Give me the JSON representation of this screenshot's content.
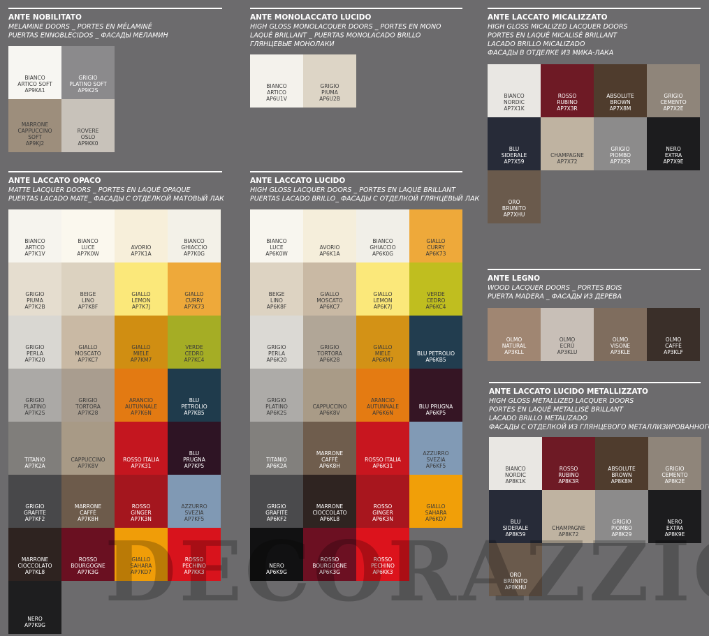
{
  "sections": [
    {
      "title": "ANTE NOBILITATO",
      "lines": [
        "MELAMINE DOORS _ PORTES EN MÉLAMINÉ",
        "PUERTAS ENNOBLECIDOS _ ФАСАДЫ МЕЛАМИН"
      ],
      "columns": 2,
      "swatches": [
        {
          "name": [
            "BIANCO",
            "ARTICO SOFT"
          ],
          "code": "AP9KA1",
          "color": "#f7f6f2"
        },
        {
          "name": [
            "GRIGIO",
            "PLATINO SOFT"
          ],
          "code": "AP9K2S",
          "color": "#8b8a8c"
        },
        {
          "name": [
            "MARRONE",
            "CAPPUCCINO",
            "SOFT"
          ],
          "code": "AP9KJ2",
          "color": "#9d8e7c"
        },
        {
          "name": [
            "ROVERE",
            "OSLO"
          ],
          "code": "AP9KK0",
          "color": "#c8c2ba"
        }
      ]
    },
    {
      "title": "ANTE MONOLACCATO LUCIDO",
      "lines": [
        "HIGH GLOSS MONOLACQUER DOORS _ PORTES EN MONO",
        "LAQUÉ BRILLANT _ PUERTAS MONOLACADO BRILLO",
        "ГЛЯНЦЕВЫЕ МОНОЛАКИ"
      ],
      "columns": 4,
      "swatches": [
        {
          "name": [
            "BIANCO",
            "ARTICO"
          ],
          "code": "AP6U1V",
          "color": "#f4f2ec"
        },
        {
          "name": [
            "GRIGIO",
            "PIUMA"
          ],
          "code": "AP6U2B",
          "color": "#ddd5c6"
        }
      ]
    },
    {
      "title": "ANTE LACCATO MICALIZZATO",
      "lines": [
        "HIGH GLOSS MICALIZED LACQUER DOORS",
        "PORTES EN LAQUÉ MICALISÉ BRILLANT",
        "LACADO BRILLO MICALIZADO",
        "ФАСАДЫ В ОТДЕЛКЕ ИЗ МИКА-ЛАКА"
      ],
      "columns": 4,
      "swatches": [
        {
          "name": [
            "BIANCO",
            "NORDIC"
          ],
          "code": "AP7X1K",
          "color": "#e9e7e3"
        },
        {
          "name": [
            "ROSSO",
            "RUBINO"
          ],
          "code": "AP7X3R",
          "color": "#6e1a25"
        },
        {
          "name": [
            "ABSOLUTE",
            "BROWN"
          ],
          "code": "AP7X8M",
          "color": "#4f3c2d"
        },
        {
          "name": [
            "GRIGIO",
            "CEMENTO"
          ],
          "code": "AP7X2E",
          "color": "#8f857a"
        },
        {
          "name": [
            "BLU",
            "SIDERALE"
          ],
          "code": "AP7X59",
          "color": "#272b38"
        },
        {
          "name": [
            "CHAMPAGNE"
          ],
          "code": "AP7X72",
          "color": "#bfb3a1"
        },
        {
          "name": [
            "GRIGIO",
            "PIOMBO"
          ],
          "code": "AP7X29",
          "color": "#8c8b8b"
        },
        {
          "name": [
            "NERO",
            "EXTRA"
          ],
          "code": "AP7X9E",
          "color": "#1c1c1e"
        },
        {
          "name": [
            "ORO",
            "BRUNITO"
          ],
          "code": "AP7XHU",
          "color": "#6a5a4c"
        }
      ]
    },
    {
      "title": "ANTE LACCATO OPACO",
      "lines": [
        "MATTE LACQUER DOORS _ PORTES EN LAQUÉ OPAQUE",
        "PUERTAS LACADO MATE_ ФАСАДЫ С ОТДЕЛКОЙ МАТОВЫЙ ЛАК"
      ],
      "columns": 4,
      "swatches": [
        {
          "name": [
            "BIANCO",
            "ARTICO"
          ],
          "code": "AP7K1V",
          "color": "#f6f4ee"
        },
        {
          "name": [
            "BIANCO",
            "LUCE"
          ],
          "code": "AP7K0W",
          "color": "#fbf8ee"
        },
        {
          "name": [
            "AVORIO"
          ],
          "code": "AP7K1A",
          "color": "#f7efda"
        },
        {
          "name": [
            "BIANCO",
            "GHIACCIO"
          ],
          "code": "AP7K0G",
          "color": "#f3f1e8"
        },
        {
          "name": [
            "GRIGIO",
            "PIUMA"
          ],
          "code": "AP7K2B",
          "color": "#e5ddcf"
        },
        {
          "name": [
            "BEIGE",
            "LINO"
          ],
          "code": "AP7K8F",
          "color": "#dcd2c0"
        },
        {
          "name": [
            "GIALLO",
            "LEMON"
          ],
          "code": "AP7K7J",
          "color": "#fbe87a"
        },
        {
          "name": [
            "GIALLO",
            "CURRY"
          ],
          "code": "AP7K73",
          "color": "#eea93a"
        },
        {
          "name": [
            "GRIGIO",
            "PERLA"
          ],
          "code": "AP7K20",
          "color": "#d9d7d2"
        },
        {
          "name": [
            "GIALLO",
            "MOSCATO"
          ],
          "code": "AP7KC7",
          "color": "#c9b9a4"
        },
        {
          "name": [
            "GIALLO",
            "MIELE"
          ],
          "code": "AP7KM7",
          "color": "#d08e12"
        },
        {
          "name": [
            "VERDE",
            "CEDRO"
          ],
          "code": "AP7KC4",
          "color": "#a5ad25"
        },
        {
          "name": [
            "GRIGIO",
            "PLATINO"
          ],
          "code": "AP7K2S",
          "color": "#aba9a6"
        },
        {
          "name": [
            "GRIGIO",
            "TORTORA"
          ],
          "code": "AP7K28",
          "color": "#a99d8f"
        },
        {
          "name": [
            "ARANCIO",
            "AUTUNNALE"
          ],
          "code": "AP7K6N",
          "color": "#e37a12"
        },
        {
          "name": [
            "BLU",
            "PETROLIO"
          ],
          "code": "AP7KB5",
          "color": "#1f3b4c"
        },
        {
          "name": [
            "TITANIO"
          ],
          "code": "AP7K2A",
          "color": "#807e7b"
        },
        {
          "name": [
            "CAPPUCCINO"
          ],
          "code": "AP7K8V",
          "color": "#a89a86"
        },
        {
          "name": [
            "ROSSO ITALIA"
          ],
          "code": "AP7K31",
          "color": "#c4161f"
        },
        {
          "name": [
            "BLU",
            "PRUGNA"
          ],
          "code": "AP7KP5",
          "color": "#2e1424"
        },
        {
          "name": [
            "GRIGIO",
            "GRAFITE"
          ],
          "code": "AP7KF2",
          "color": "#48484a"
        },
        {
          "name": [
            "MARRONE",
            "CAFFÈ"
          ],
          "code": "AP7K8H",
          "color": "#6d5b4b"
        },
        {
          "name": [
            "ROSSO",
            "GINGER"
          ],
          "code": "AP7K3N",
          "color": "#a4161e"
        },
        {
          "name": [
            "AZZURRO",
            "SVEZIA"
          ],
          "code": "AP7KF5",
          "color": "#8099b4"
        },
        {
          "name": [
            "MARRONE",
            "CIOCCOLATO"
          ],
          "code": "AP7KL8",
          "color": "#2e2320"
        },
        {
          "name": [
            "ROSSO",
            "BOURGOGNE"
          ],
          "code": "AP7K3G",
          "color": "#6a1021"
        },
        {
          "name": [
            "GIALLO",
            "SAHARA"
          ],
          "code": "AP7KD7",
          "color": "#f09d08"
        },
        {
          "name": [
            "ROSSO",
            "PECHINO"
          ],
          "code": "AP7KK3",
          "color": "#d8131c"
        },
        {
          "name": [
            "NERO"
          ],
          "code": "AP7K9G",
          "color": "#1e1e1f"
        }
      ]
    },
    {
      "title": "ANTE LACCATO LUCIDO",
      "lines": [
        "HIGH GLOSS LACQUER DOORS _ PORTES EN LAQUÉ BRILLANT",
        "PUERTAS LACADO BRILLO_ ФАСАДЫ С ОТДЕЛКОЙ ГЛЯНЦЕВЫЙ ЛАК"
      ],
      "columns": 4,
      "swatches": [
        {
          "name": [
            "BIANCO",
            "LUCE"
          ],
          "code": "AP6K0W",
          "color": "#f8f6ef"
        },
        {
          "name": [
            "AVORIO"
          ],
          "code": "AP6K1A",
          "color": "#f5eedb"
        },
        {
          "name": [
            "BIANCO",
            "GHIACCIO"
          ],
          "code": "AP6K0G",
          "color": "#f1efe8"
        },
        {
          "name": [
            "GIALLO",
            "CURRY"
          ],
          "code": "AP6K73",
          "color": "#eea93a"
        },
        {
          "name": [
            "BEIGE",
            "LINO"
          ],
          "code": "AP6K8F",
          "color": "#ddd3c2"
        },
        {
          "name": [
            "GIALLO",
            "MOSCATO"
          ],
          "code": "AP6KC7",
          "color": "#c9b9a4"
        },
        {
          "name": [
            "GIALLO",
            "LEMON"
          ],
          "code": "AP6K7J",
          "color": "#fbe87a"
        },
        {
          "name": [
            "VERDE",
            "CEDRO"
          ],
          "code": "AP6KC4",
          "color": "#c0be1f"
        },
        {
          "name": [
            "GRIGIO",
            "PERLA"
          ],
          "code": "AP6K20",
          "color": "#dbd9d4"
        },
        {
          "name": [
            "GRIGIO",
            "TORTORA"
          ],
          "code": "AP6K28",
          "color": "#b1a697"
        },
        {
          "name": [
            "GIALLO",
            "MIELE"
          ],
          "code": "AP6KM7",
          "color": "#d39216"
        },
        {
          "name": [
            "BLU PETROLIO"
          ],
          "code": "AP6KB5",
          "color": "#223d4f"
        },
        {
          "name": [
            "GRIGIO",
            "PLATINO"
          ],
          "code": "AP6K2S",
          "color": "#adaba8"
        },
        {
          "name": [
            "CAPPUCCINO"
          ],
          "code": "AP6K8V",
          "color": "#a99b87"
        },
        {
          "name": [
            "ARANCIO",
            "AUTUNNALE"
          ],
          "code": "AP6K6N",
          "color": "#e47b12"
        },
        {
          "name": [
            "BLU PRUGNA"
          ],
          "code": "AP6KP5",
          "color": "#351524"
        },
        {
          "name": [
            "TITANIO"
          ],
          "code": "AP6K2A",
          "color": "#82807d"
        },
        {
          "name": [
            "MARRONE",
            "CAFFÈ"
          ],
          "code": "AP6K8H",
          "color": "#6f5d4d"
        },
        {
          "name": [
            "ROSSO ITALIA"
          ],
          "code": "AP6K31",
          "color": "#c8161f"
        },
        {
          "name": [
            "AZZURRO",
            "SVEZIA"
          ],
          "code": "AP6KF5",
          "color": "#819ab5"
        },
        {
          "name": [
            "GRIGIO",
            "GRAFITE"
          ],
          "code": "AP6KF2",
          "color": "#4a4a4c"
        },
        {
          "name": [
            "MARRONE",
            "CIOCCOLATO"
          ],
          "code": "AP6KL8",
          "color": "#2f2421"
        },
        {
          "name": [
            "ROSSO",
            "GINGER"
          ],
          "code": "AP6K3N",
          "color": "#a8161e"
        },
        {
          "name": [
            "GIALLO",
            "SAHARA"
          ],
          "code": "AP6KD7",
          "color": "#f19f08"
        },
        {
          "name": [
            "NERO"
          ],
          "code": "AP6K9G",
          "color": "#111112"
        },
        {
          "name": [
            "ROSSO",
            "BOURGOGNE"
          ],
          "code": "AP6K3G",
          "color": "#6c1022"
        },
        {
          "name": [
            "ROSSO",
            "PECHINO"
          ],
          "code": "AP6KK3",
          "color": "#dc131c"
        }
      ]
    },
    {
      "title": "ANTE LEGNO",
      "lines": [
        "WOOD LACQUER DOORS _ PORTES BOIS",
        "PUERTA MADERA _ ФАСАДЫ ИЗ ДЕРЕВА"
      ],
      "columns": 4,
      "swatches": [
        {
          "name": [
            "OLMO",
            "NATURAL"
          ],
          "code": "AP3KLL",
          "color": "#a08672"
        },
        {
          "name": [
            "OLMO",
            "ECRÙ"
          ],
          "code": "AP3KLU",
          "color": "#c8bfb7"
        },
        {
          "name": [
            "OLMO",
            "VISONE"
          ],
          "code": "AP3KLE",
          "color": "#7f6d5e"
        },
        {
          "name": [
            "OLMO",
            "CAFFÈ"
          ],
          "code": "AP3KLF",
          "color": "#3a2f29"
        }
      ]
    },
    {
      "title": "ANTE LACCATO LUCIDO METALLIZZATO",
      "lines": [
        "HIGH GLOSS METALLIZED LACQUER DOORS",
        "PORTES EN LAQUÉ METALLISÉ BRILLANT",
        "LACADO BRILLO METALIZADO",
        "ФАСАДЫ С ОТДЕЛКОЙ ИЗ ГЛЯНЦЕВОГО МЕТАЛЛИЗИРОВАННОГО ЛАКА"
      ],
      "columns": 4,
      "swatches": [
        {
          "name": [
            "BIANCO",
            "NORDIC"
          ],
          "code": "AP8K1K",
          "color": "#e9e7e3"
        },
        {
          "name": [
            "ROSSO",
            "RUBINO"
          ],
          "code": "AP8K3R",
          "color": "#6e1a25"
        },
        {
          "name": [
            "ABSOLUTE",
            "BROWN"
          ],
          "code": "AP8K8M",
          "color": "#4f3c2d"
        },
        {
          "name": [
            "GRIGIO",
            "CEMENTO"
          ],
          "code": "AP8K2E",
          "color": "#8f857a"
        },
        {
          "name": [
            "BLU",
            "SIDERALE"
          ],
          "code": "AP8K59",
          "color": "#272b38"
        },
        {
          "name": [
            "CHAMPAGNE"
          ],
          "code": "AP8K72",
          "color": "#bfb3a1"
        },
        {
          "name": [
            "GRIGIO",
            "PIOMBO"
          ],
          "code": "AP8K29",
          "color": "#8c8b8b"
        },
        {
          "name": [
            "NERO",
            "EXTRA"
          ],
          "code": "AP8K9E",
          "color": "#1c1c1e"
        },
        {
          "name": [
            "ORO",
            "BRUNITO"
          ],
          "code": "AP8KHU",
          "color": "#6a5a4c"
        }
      ]
    }
  ],
  "watermark": "DECORAZZIO"
}
